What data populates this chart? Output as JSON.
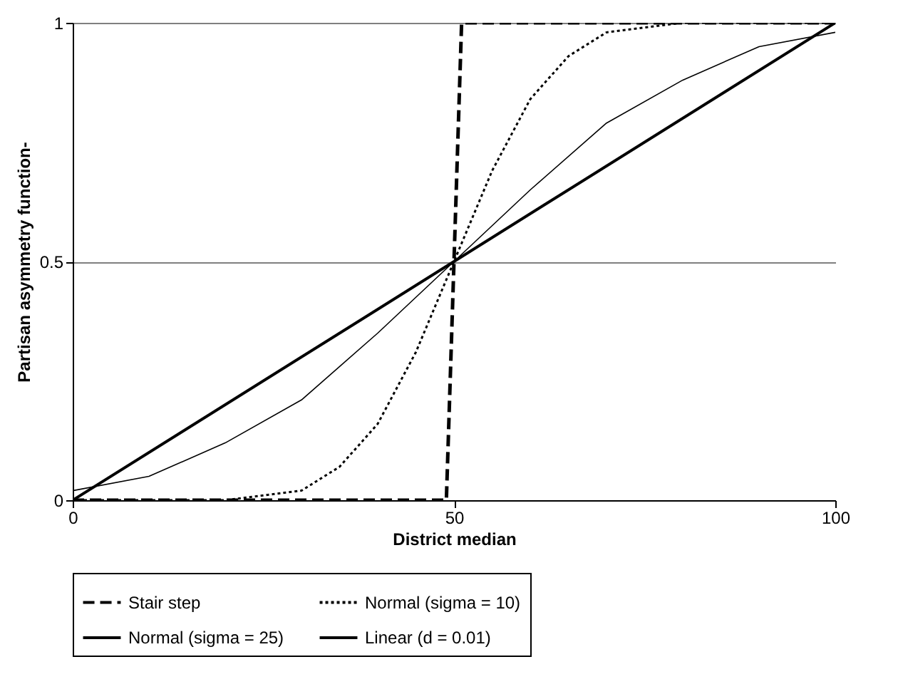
{
  "chart_data": {
    "type": "line",
    "xlabel": "District median",
    "ylabel": "Partisan asymmetry function-",
    "xlim": [
      0,
      100
    ],
    "xticks": [
      0,
      50,
      100
    ],
    "ylim": [
      0,
      1
    ],
    "yticks": [
      0,
      0.5,
      1
    ],
    "grid": "y",
    "legend": "bottom",
    "marker": "none",
    "series": [
      {
        "name": "Stair step",
        "color": "#000000",
        "line_style": "dashed",
        "x": [
          0,
          49,
          50,
          51,
          100
        ],
        "values": [
          0,
          0,
          0.5,
          1,
          1
        ]
      },
      {
        "name": "Normal (sigma = 10)",
        "color": "#000000",
        "line_style": "dotted",
        "x": [
          0,
          20,
          25,
          30,
          35,
          40,
          45,
          50,
          55,
          60,
          65,
          70,
          75,
          80,
          100
        ],
        "values": [
          0,
          0.0,
          0.01,
          0.02,
          0.07,
          0.16,
          0.31,
          0.5,
          0.69,
          0.84,
          0.93,
          0.98,
          0.99,
          1.0,
          1
        ]
      },
      {
        "name": "Normal (sigma = 25)",
        "color": "#000000",
        "line_style": "solid",
        "x": [
          0,
          10,
          20,
          30,
          40,
          50,
          60,
          70,
          80,
          90,
          100
        ],
        "values": [
          0.02,
          0.05,
          0.12,
          0.21,
          0.35,
          0.5,
          0.65,
          0.79,
          0.88,
          0.95,
          0.98
        ]
      },
      {
        "name": "Linear (d = 0.01)",
        "color": "#000000",
        "line_style": "solid",
        "x": [
          0,
          100
        ],
        "values": [
          0,
          1
        ]
      }
    ]
  }
}
